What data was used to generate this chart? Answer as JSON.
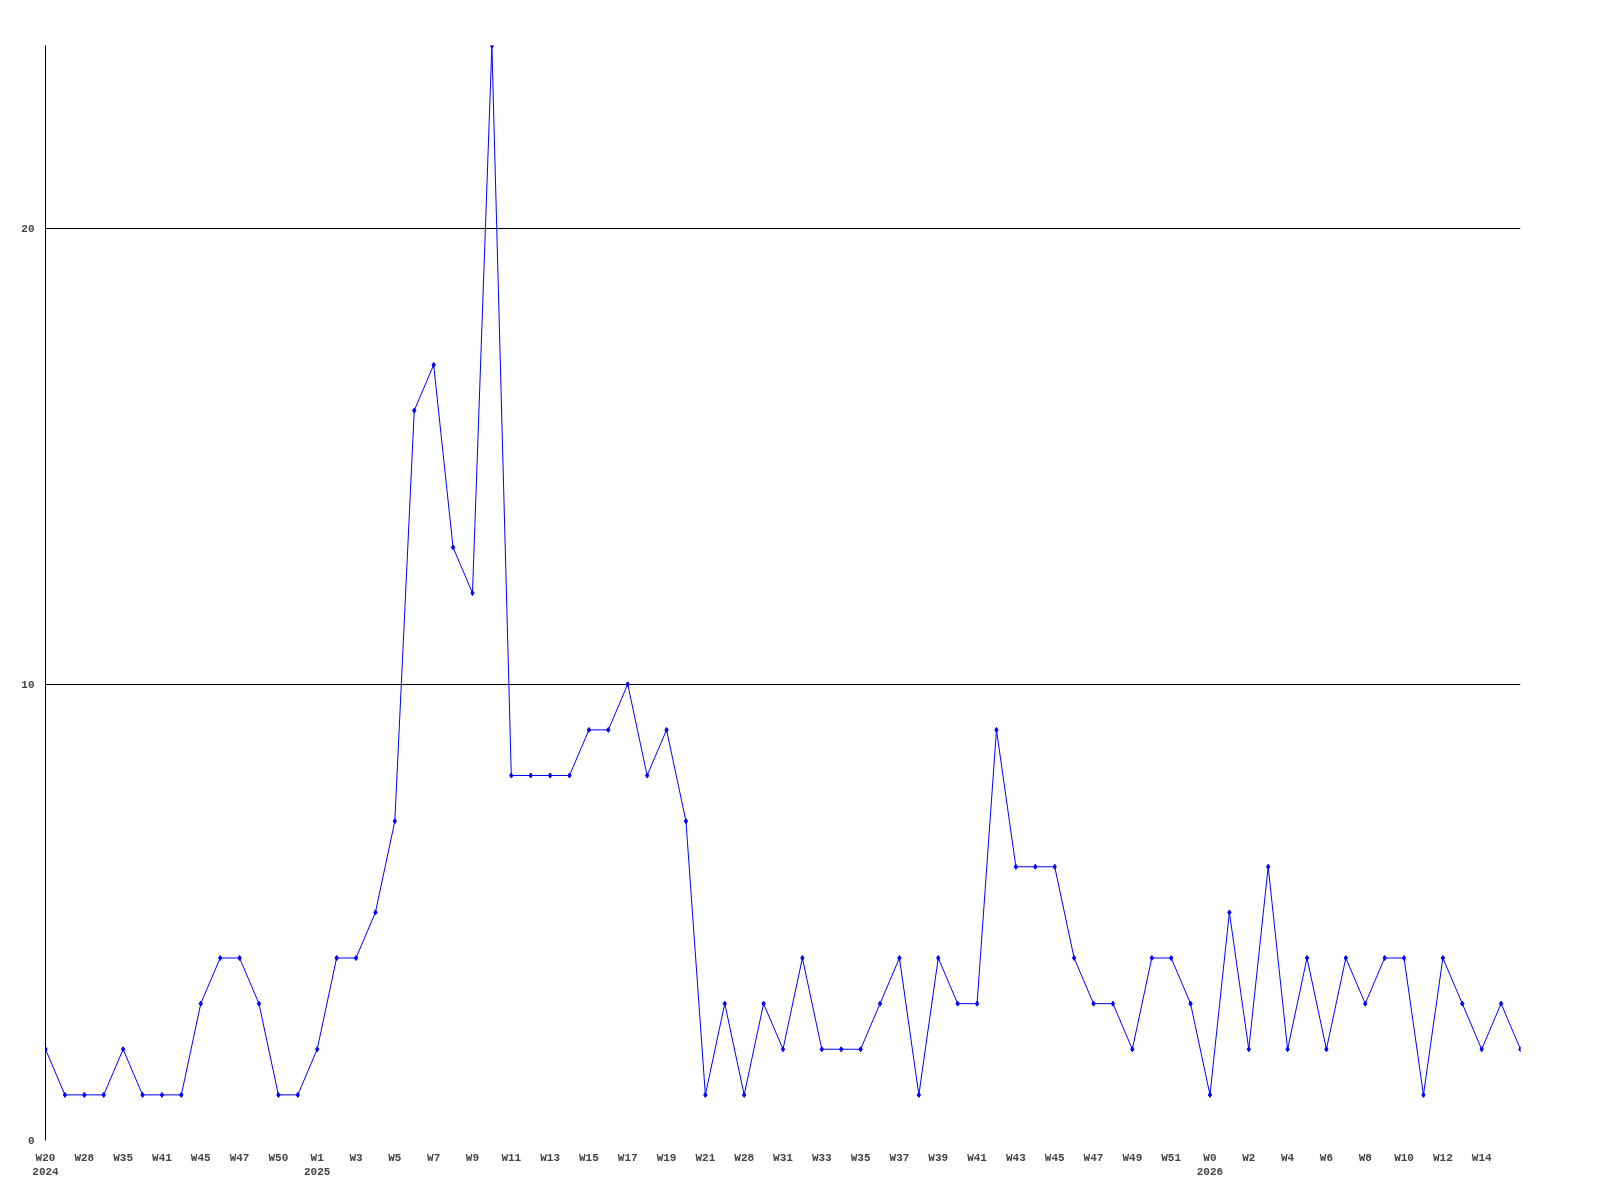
{
  "chart_data": {
    "type": "line",
    "categories": [
      "W20\n2024",
      null,
      "W28",
      null,
      "W35",
      null,
      "W41",
      null,
      "W45",
      null,
      "W47",
      null,
      "W50",
      null,
      "W1\n2025",
      null,
      "W3",
      null,
      "W5",
      null,
      "W7",
      null,
      "W9",
      null,
      "W11",
      null,
      "W13",
      null,
      "W15",
      null,
      "W17",
      null,
      "W19",
      null,
      "W21",
      null,
      "W28",
      null,
      "W31",
      null,
      "W33",
      null,
      "W35",
      null,
      "W37",
      null,
      "W39",
      null,
      "W41",
      null,
      "W43",
      null,
      "W45",
      null,
      "W47",
      null,
      "W49",
      null,
      "W51",
      null,
      "W0\n2026",
      null,
      "W2",
      null,
      "W4",
      null,
      "W6",
      null,
      "W8",
      null,
      "W10",
      null,
      "W12",
      null,
      "W14",
      null,
      null
    ],
    "series": [
      {
        "color": "#0000ff",
        "values": [
          2,
          1,
          1,
          1,
          2,
          1,
          1,
          1,
          3,
          4,
          4,
          3,
          1,
          1,
          2,
          4,
          4,
          5,
          7,
          16,
          17,
          13,
          12,
          24,
          8,
          8,
          8,
          8,
          9,
          9,
          10,
          8,
          9,
          7,
          1,
          3,
          1,
          3,
          2,
          4,
          2,
          2,
          2,
          3,
          4,
          1,
          4,
          3,
          3,
          9,
          6,
          6,
          6,
          4,
          3,
          3,
          2,
          4,
          4,
          3,
          1,
          5,
          2,
          6,
          2,
          4,
          2,
          4,
          3,
          4,
          4,
          1,
          4,
          3,
          2,
          3,
          2
        ]
      }
    ],
    "ylim": [
      0,
      24
    ],
    "yticks": [
      0,
      10,
      20
    ],
    "grid": "y",
    "marker": "diamond",
    "line_style": "solid"
  }
}
